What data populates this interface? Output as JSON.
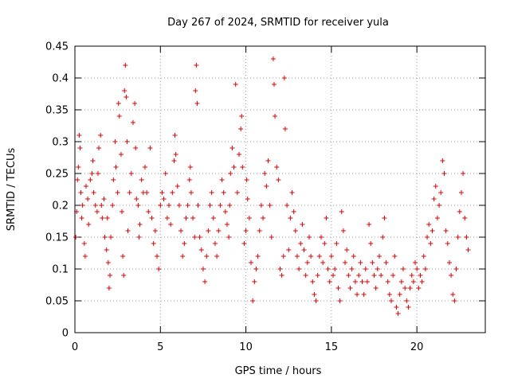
{
  "chart_data": {
    "type": "scatter",
    "title": "Day 267 of 2024, SRMTID for receiver yula",
    "xlabel": "GPS time / hours",
    "ylabel": "SRMTID / TECUs",
    "xlim": [
      0,
      24
    ],
    "ylim": [
      0,
      0.45
    ],
    "xticks": [
      0,
      5,
      10,
      15,
      20
    ],
    "yticks": [
      0,
      0.05,
      0.1,
      0.15,
      0.2,
      0.25,
      0.3,
      0.35,
      0.4,
      0.45
    ],
    "grid": true,
    "marker": "plus",
    "color": "#e00000",
    "series": [
      {
        "name": "SRMTID",
        "points": [
          [
            0.05,
            0.15
          ],
          [
            0.1,
            0.19
          ],
          [
            0.15,
            0.24
          ],
          [
            0.2,
            0.26
          ],
          [
            0.25,
            0.31
          ],
          [
            0.3,
            0.29
          ],
          [
            0.35,
            0.22
          ],
          [
            0.4,
            0.18
          ],
          [
            0.45,
            0.2
          ],
          [
            0.55,
            0.14
          ],
          [
            0.6,
            0.12
          ],
          [
            0.65,
            0.23
          ],
          [
            0.75,
            0.21
          ],
          [
            0.8,
            0.17
          ],
          [
            0.9,
            0.24
          ],
          [
            1.0,
            0.25
          ],
          [
            1.05,
            0.27
          ],
          [
            1.1,
            0.22
          ],
          [
            1.2,
            0.2
          ],
          [
            1.3,
            0.19
          ],
          [
            1.35,
            0.25
          ],
          [
            1.4,
            0.29
          ],
          [
            1.5,
            0.31
          ],
          [
            1.55,
            0.2
          ],
          [
            1.6,
            0.18
          ],
          [
            1.7,
            0.21
          ],
          [
            1.75,
            0.15
          ],
          [
            1.85,
            0.13
          ],
          [
            1.9,
            0.18
          ],
          [
            1.95,
            0.11
          ],
          [
            2.0,
            0.07
          ],
          [
            2.05,
            0.09
          ],
          [
            2.1,
            0.15
          ],
          [
            2.2,
            0.2
          ],
          [
            2.25,
            0.24
          ],
          [
            2.35,
            0.3
          ],
          [
            2.4,
            0.26
          ],
          [
            2.5,
            0.22
          ],
          [
            2.55,
            0.36
          ],
          [
            2.6,
            0.34
          ],
          [
            2.7,
            0.28
          ],
          [
            2.75,
            0.19
          ],
          [
            2.8,
            0.12
          ],
          [
            2.85,
            0.09
          ],
          [
            2.9,
            0.38
          ],
          [
            2.95,
            0.42
          ],
          [
            3.0,
            0.37
          ],
          [
            3.05,
            0.3
          ],
          [
            3.1,
            0.16
          ],
          [
            3.2,
            0.22
          ],
          [
            3.3,
            0.25
          ],
          [
            3.4,
            0.33
          ],
          [
            3.5,
            0.36
          ],
          [
            3.55,
            0.29
          ],
          [
            3.6,
            0.21
          ],
          [
            3.7,
            0.2
          ],
          [
            3.75,
            0.15
          ],
          [
            3.8,
            0.17
          ],
          [
            3.9,
            0.24
          ],
          [
            4.0,
            0.22
          ],
          [
            4.1,
            0.26
          ],
          [
            4.2,
            0.22
          ],
          [
            4.3,
            0.19
          ],
          [
            4.4,
            0.29
          ],
          [
            4.5,
            0.18
          ],
          [
            4.6,
            0.14
          ],
          [
            4.7,
            0.16
          ],
          [
            4.8,
            0.12
          ],
          [
            4.9,
            0.1
          ],
          [
            5.0,
            0.2
          ],
          [
            5.1,
            0.22
          ],
          [
            5.2,
            0.21
          ],
          [
            5.3,
            0.25
          ],
          [
            5.4,
            0.18
          ],
          [
            5.5,
            0.2
          ],
          [
            5.6,
            0.17
          ],
          [
            5.7,
            0.22
          ],
          [
            5.8,
            0.27
          ],
          [
            5.85,
            0.31
          ],
          [
            5.9,
            0.28
          ],
          [
            6.0,
            0.23
          ],
          [
            6.1,
            0.2
          ],
          [
            6.2,
            0.16
          ],
          [
            6.3,
            0.12
          ],
          [
            6.4,
            0.14
          ],
          [
            6.5,
            0.18
          ],
          [
            6.6,
            0.2
          ],
          [
            6.7,
            0.24
          ],
          [
            6.75,
            0.26
          ],
          [
            6.8,
            0.22
          ],
          [
            6.9,
            0.18
          ],
          [
            7.0,
            0.15
          ],
          [
            7.05,
            0.38
          ],
          [
            7.1,
            0.42
          ],
          [
            7.15,
            0.36
          ],
          [
            7.2,
            0.2
          ],
          [
            7.3,
            0.15
          ],
          [
            7.4,
            0.13
          ],
          [
            7.5,
            0.1
          ],
          [
            7.6,
            0.08
          ],
          [
            7.7,
            0.12
          ],
          [
            7.8,
            0.16
          ],
          [
            7.9,
            0.2
          ],
          [
            8.0,
            0.22
          ],
          [
            8.1,
            0.18
          ],
          [
            8.2,
            0.14
          ],
          [
            8.3,
            0.12
          ],
          [
            8.4,
            0.16
          ],
          [
            8.5,
            0.2
          ],
          [
            8.6,
            0.24
          ],
          [
            8.7,
            0.22
          ],
          [
            8.8,
            0.19
          ],
          [
            8.9,
            0.17
          ],
          [
            9.0,
            0.15
          ],
          [
            9.05,
            0.2
          ],
          [
            9.1,
            0.25
          ],
          [
            9.2,
            0.29
          ],
          [
            9.3,
            0.26
          ],
          [
            9.4,
            0.39
          ],
          [
            9.5,
            0.22
          ],
          [
            9.6,
            0.28
          ],
          [
            9.7,
            0.32
          ],
          [
            9.75,
            0.34
          ],
          [
            9.8,
            0.26
          ],
          [
            9.9,
            0.14
          ],
          [
            10.0,
            0.16
          ],
          [
            10.05,
            0.24
          ],
          [
            10.1,
            0.21
          ],
          [
            10.2,
            0.18
          ],
          [
            10.3,
            0.11
          ],
          [
            10.4,
            0.05
          ],
          [
            10.5,
            0.08
          ],
          [
            10.6,
            0.1
          ],
          [
            10.7,
            0.12
          ],
          [
            10.8,
            0.16
          ],
          [
            10.9,
            0.2
          ],
          [
            11.0,
            0.18
          ],
          [
            11.1,
            0.25
          ],
          [
            11.2,
            0.23
          ],
          [
            11.3,
            0.27
          ],
          [
            11.4,
            0.2
          ],
          [
            11.5,
            0.15
          ],
          [
            11.6,
            0.43
          ],
          [
            11.65,
            0.39
          ],
          [
            11.7,
            0.34
          ],
          [
            11.8,
            0.26
          ],
          [
            11.9,
            0.24
          ],
          [
            12.0,
            0.1
          ],
          [
            12.1,
            0.09
          ],
          [
            12.2,
            0.12
          ],
          [
            12.25,
            0.4
          ],
          [
            12.3,
            0.32
          ],
          [
            12.4,
            0.2
          ],
          [
            12.5,
            0.13
          ],
          [
            12.6,
            0.18
          ],
          [
            12.7,
            0.22
          ],
          [
            12.8,
            0.19
          ],
          [
            12.9,
            0.16
          ],
          [
            13.0,
            0.12
          ],
          [
            13.1,
            0.1
          ],
          [
            13.2,
            0.14
          ],
          [
            13.3,
            0.17
          ],
          [
            13.4,
            0.13
          ],
          [
            13.5,
            0.09
          ],
          [
            13.6,
            0.11
          ],
          [
            13.7,
            0.15
          ],
          [
            13.8,
            0.12
          ],
          [
            13.9,
            0.08
          ],
          [
            14.0,
            0.06
          ],
          [
            14.1,
            0.05
          ],
          [
            14.2,
            0.09
          ],
          [
            14.3,
            0.12
          ],
          [
            14.4,
            0.15
          ],
          [
            14.5,
            0.11
          ],
          [
            14.6,
            0.14
          ],
          [
            14.7,
            0.18
          ],
          [
            14.8,
            0.1
          ],
          [
            14.9,
            0.08
          ],
          [
            15.0,
            0.12
          ],
          [
            15.1,
            0.09
          ],
          [
            15.2,
            0.1
          ],
          [
            15.3,
            0.14
          ],
          [
            15.4,
            0.07
          ],
          [
            15.5,
            0.05
          ],
          [
            15.6,
            0.19
          ],
          [
            15.7,
            0.16
          ],
          [
            15.8,
            0.11
          ],
          [
            15.9,
            0.13
          ],
          [
            16.0,
            0.09
          ],
          [
            16.1,
            0.07
          ],
          [
            16.2,
            0.1
          ],
          [
            16.3,
            0.12
          ],
          [
            16.4,
            0.08
          ],
          [
            16.5,
            0.06
          ],
          [
            16.6,
            0.09
          ],
          [
            16.7,
            0.11
          ],
          [
            16.8,
            0.08
          ],
          [
            16.9,
            0.06
          ],
          [
            17.0,
            0.1
          ],
          [
            17.1,
            0.08
          ],
          [
            17.2,
            0.17
          ],
          [
            17.3,
            0.14
          ],
          [
            17.4,
            0.11
          ],
          [
            17.5,
            0.09
          ],
          [
            17.6,
            0.07
          ],
          [
            17.7,
            0.1
          ],
          [
            17.8,
            0.12
          ],
          [
            17.9,
            0.09
          ],
          [
            18.0,
            0.15
          ],
          [
            18.1,
            0.18
          ],
          [
            18.2,
            0.11
          ],
          [
            18.3,
            0.08
          ],
          [
            18.4,
            0.06
          ],
          [
            18.5,
            0.05
          ],
          [
            18.6,
            0.09
          ],
          [
            18.7,
            0.12
          ],
          [
            18.8,
            0.04
          ],
          [
            18.9,
            0.03
          ],
          [
            19.0,
            0.06
          ],
          [
            19.1,
            0.08
          ],
          [
            19.2,
            0.1
          ],
          [
            19.3,
            0.07
          ],
          [
            19.4,
            0.05
          ],
          [
            19.5,
            0.04
          ],
          [
            19.6,
            0.07
          ],
          [
            19.7,
            0.09
          ],
          [
            19.8,
            0.08
          ],
          [
            19.9,
            0.11
          ],
          [
            20.0,
            0.1
          ],
          [
            20.1,
            0.07
          ],
          [
            20.2,
            0.09
          ],
          [
            20.3,
            0.08
          ],
          [
            20.4,
            0.12
          ],
          [
            20.5,
            0.1
          ],
          [
            20.6,
            0.15
          ],
          [
            20.7,
            0.17
          ],
          [
            20.8,
            0.14
          ],
          [
            20.9,
            0.16
          ],
          [
            21.0,
            0.21
          ],
          [
            21.1,
            0.23
          ],
          [
            21.2,
            0.18
          ],
          [
            21.3,
            0.2
          ],
          [
            21.4,
            0.22
          ],
          [
            21.5,
            0.27
          ],
          [
            21.6,
            0.25
          ],
          [
            21.7,
            0.16
          ],
          [
            21.8,
            0.14
          ],
          [
            21.9,
            0.11
          ],
          [
            22.0,
            0.09
          ],
          [
            22.1,
            0.06
          ],
          [
            22.2,
            0.05
          ],
          [
            22.3,
            0.1
          ],
          [
            22.4,
            0.15
          ],
          [
            22.5,
            0.19
          ],
          [
            22.6,
            0.22
          ],
          [
            22.7,
            0.25
          ],
          [
            22.8,
            0.18
          ],
          [
            22.9,
            0.15
          ],
          [
            23.0,
            0.13
          ]
        ]
      }
    ]
  }
}
